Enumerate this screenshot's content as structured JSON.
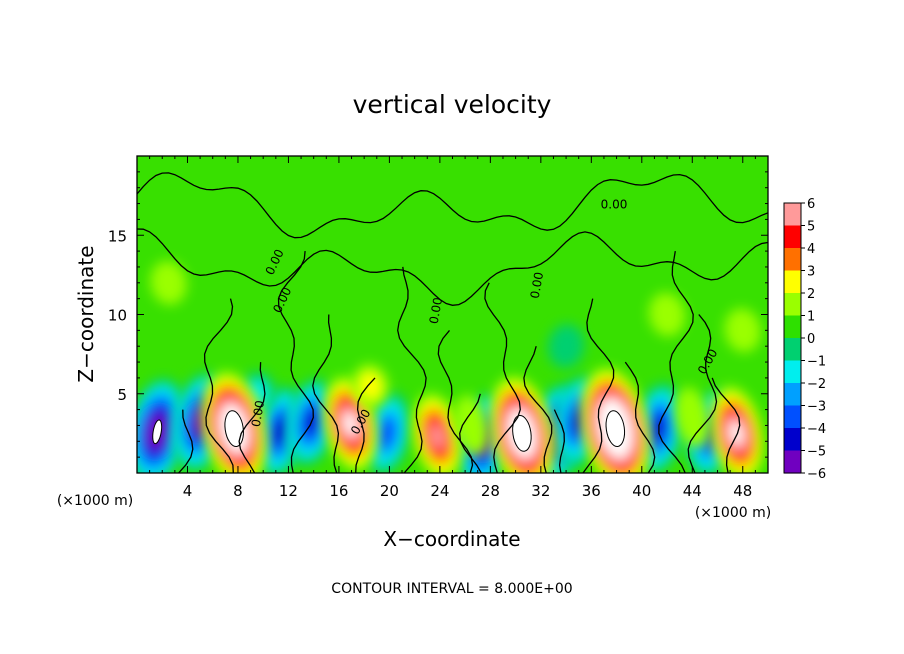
{
  "chart_data": {
    "type": "heatmap",
    "title": "vertical velocity",
    "xlabel": "X−coordinate",
    "ylabel": "Z−coordinate",
    "x_unit_left": "(×1000 m)",
    "x_unit_right": "(×1000 m)",
    "xlim": [
      0,
      50
    ],
    "ylim": [
      0,
      20
    ],
    "x_ticks": [
      4,
      8,
      12,
      16,
      20,
      24,
      28,
      32,
      36,
      40,
      44,
      48
    ],
    "y_ticks": [
      5,
      10,
      15
    ],
    "contour_interval_text": "CONTOUR INTERVAL = 8.000E+00",
    "contour_labels": [
      "0.00",
      "0.00",
      "0.00",
      "0.00",
      "0.00",
      "0.00",
      "0.00",
      "0.00"
    ],
    "colorbar": {
      "min": -6,
      "max": 6,
      "tick_labels": [
        "6",
        "5",
        "4",
        "3",
        "2",
        "1",
        "0",
        "−1",
        "−2",
        "−3",
        "−4",
        "−5",
        "−6"
      ],
      "colors": [
        "#ffffff",
        "#ff9a9a",
        "#ff0000",
        "#ff7000",
        "#ffff00",
        "#9aff00",
        "#2ee000",
        "#00d070",
        "#00eeee",
        "#00a0ff",
        "#0050ff",
        "#0000cc",
        "#7000c0"
      ]
    },
    "updrafts": [
      {
        "x": 7.7,
        "z": 2.8,
        "w": 8.0
      },
      {
        "x": 16.9,
        "z": 3.1,
        "w": 5.5
      },
      {
        "x": 23.8,
        "z": 2.3,
        "w": 4.5
      },
      {
        "x": 30.5,
        "z": 2.5,
        "w": 8.0
      },
      {
        "x": 37.9,
        "z": 2.8,
        "w": 9.0
      },
      {
        "x": 47.5,
        "z": 2.5,
        "w": 5.5
      },
      {
        "x": 18.5,
        "z": 5.5,
        "w": 1.5
      },
      {
        "x": 26.5,
        "z": 3.0,
        "w": 1.2
      },
      {
        "x": 44.0,
        "z": 3.5,
        "w": 1.2
      },
      {
        "x": 2.5,
        "z": 12.0,
        "w": 1.0
      },
      {
        "x": 42.0,
        "z": 10.0,
        "w": 1.0
      },
      {
        "x": 48.0,
        "z": 9.0,
        "w": 1.2
      }
    ],
    "downdrafts": [
      {
        "x": 1.6,
        "z": 2.6,
        "w": -7.0
      },
      {
        "x": 5.0,
        "z": 3.2,
        "w": -6.0
      },
      {
        "x": 11.3,
        "z": 2.6,
        "w": -5.0
      },
      {
        "x": 13.8,
        "z": 3.2,
        "w": -4.5
      },
      {
        "x": 19.8,
        "z": 2.5,
        "w": -4.0
      },
      {
        "x": 27.5,
        "z": 2.0,
        "w": -5.5
      },
      {
        "x": 33.3,
        "z": 2.5,
        "w": -6.0
      },
      {
        "x": 35.0,
        "z": 3.3,
        "w": -5.0
      },
      {
        "x": 41.3,
        "z": 2.8,
        "w": -5.0
      },
      {
        "x": 45.5,
        "z": 2.5,
        "w": -4.5
      },
      {
        "x": 9.5,
        "z": 5.0,
        "w": -1.5
      },
      {
        "x": 34.0,
        "z": 8.0,
        "w": -1.0
      }
    ]
  }
}
